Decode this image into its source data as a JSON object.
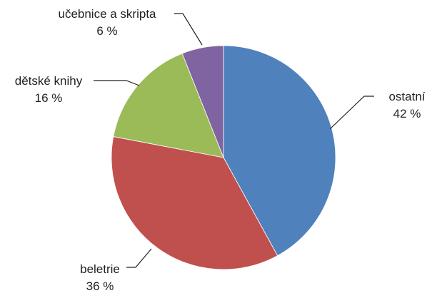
{
  "chart_data": {
    "type": "pie",
    "title": "",
    "slices": [
      {
        "label": "ostatní",
        "value": 42,
        "value_label": "42 %",
        "color": "#4f81bd"
      },
      {
        "label": "beletrie",
        "value": 36,
        "value_label": "36 %",
        "color": "#c0504d"
      },
      {
        "label": "dětské knihy",
        "value": 16,
        "value_label": "16 %",
        "color": "#9bbb59"
      },
      {
        "label": "učebnice a skripta",
        "value": 6,
        "value_label": "6 %",
        "color": "#8064a2"
      }
    ],
    "start_angle_deg": 0,
    "direction": "clockwise",
    "legend": "none"
  }
}
